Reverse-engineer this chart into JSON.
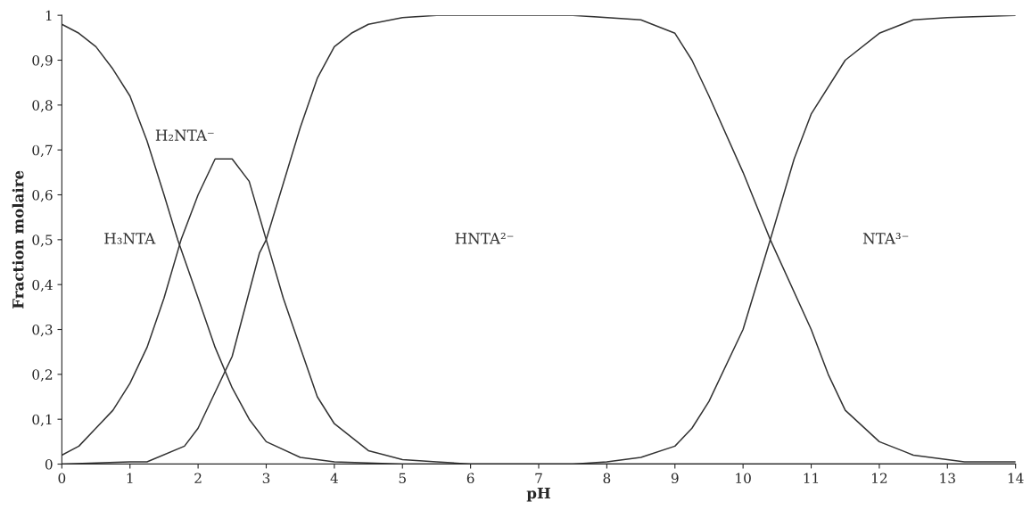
{
  "chart_data": {
    "type": "line",
    "xlabel": "pH",
    "ylabel": "Fraction molaire",
    "xlim": [
      0,
      14
    ],
    "xticks": [
      0,
      1,
      2,
      3,
      4,
      5,
      6,
      7,
      8,
      9,
      10,
      11,
      12,
      13,
      14
    ],
    "ylim": [
      0,
      1
    ],
    "yticks": [
      0,
      {
        "value": 0.1,
        "label": "0,1"
      },
      {
        "value": 0.2,
        "label": "0,2"
      },
      {
        "value": 0.3,
        "label": "0,3"
      },
      {
        "value": 0.4,
        "label": "0,4"
      },
      {
        "value": 0.5,
        "label": "0,5"
      },
      {
        "value": 0.6,
        "label": "0,6"
      },
      {
        "value": 0.7,
        "label": "0,7"
      },
      {
        "value": 0.8,
        "label": "0,8"
      },
      {
        "value": 0.9,
        "label": "0,9"
      },
      1
    ],
    "grid": false,
    "marker": "none",
    "line_style": "solid",
    "series": [
      {
        "color": "#333333",
        "x": [
          0,
          0.25,
          0.5,
          0.75,
          1,
          1.25,
          1.5,
          1.7,
          2,
          2.25,
          2.5,
          2.75,
          3,
          3.5,
          4,
          5,
          6,
          14
        ],
        "values": [
          0.98,
          0.96,
          0.93,
          0.88,
          0.82,
          0.72,
          0.6,
          0.5,
          0.37,
          0.26,
          0.17,
          0.1,
          0.05,
          0.015,
          0.005,
          0,
          0,
          0
        ]
      },
      {
        "color": "#333333",
        "x": [
          0,
          0.25,
          0.5,
          0.75,
          1,
          1.25,
          1.5,
          1.75,
          2,
          2.25,
          2.5,
          2.75,
          3,
          3.25,
          3.5,
          3.75,
          4,
          4.5,
          5,
          5.5,
          6,
          14
        ],
        "values": [
          0.02,
          0.04,
          0.08,
          0.12,
          0.18,
          0.26,
          0.37,
          0.5,
          0.6,
          0.68,
          0.68,
          0.63,
          0.5,
          0.37,
          0.26,
          0.15,
          0.09,
          0.03,
          0.01,
          0.005,
          0,
          0
        ]
      },
      {
        "color": "#333333",
        "x": [
          0,
          1,
          1.25,
          1.8,
          2,
          2.5,
          2.9,
          3,
          3.5,
          3.75,
          4,
          4.25,
          4.5,
          5,
          5.5,
          7.5,
          8.5,
          9,
          9.25,
          9.5,
          10,
          10.4,
          11,
          11.25,
          11.5,
          12,
          12.5,
          13,
          13.25,
          14
        ],
        "values": [
          0,
          0.005,
          0.005,
          0.04,
          0.08,
          0.24,
          0.47,
          0.5,
          0.75,
          0.86,
          0.93,
          0.96,
          0.98,
          0.995,
          1,
          1,
          0.99,
          0.96,
          0.9,
          0.82,
          0.65,
          0.5,
          0.3,
          0.2,
          0.12,
          0.05,
          0.02,
          0.01,
          0.005,
          0.005
        ]
      },
      {
        "color": "#333333",
        "x": [
          0,
          7.5,
          8,
          8.5,
          9,
          9.25,
          9.5,
          10,
          10.4,
          10.75,
          11,
          11.5,
          12,
          12.5,
          13,
          14
        ],
        "values": [
          0,
          0,
          0.005,
          0.015,
          0.04,
          0.08,
          0.14,
          0.3,
          0.5,
          0.68,
          0.78,
          0.9,
          0.96,
          0.99,
          0.995,
          1
        ]
      }
    ],
    "annotations": [
      "H₃NTA",
      "H₂NTA⁻",
      "HNTA²⁻",
      "NTA³⁻"
    ]
  }
}
